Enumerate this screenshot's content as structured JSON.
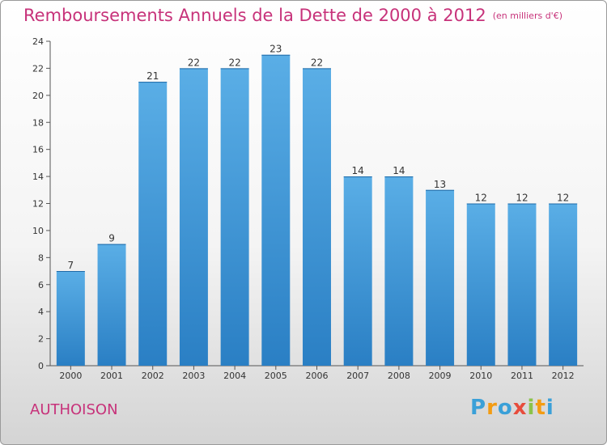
{
  "title": "Remboursements Annuels de la Dette de 2000 à 2012",
  "unit": "(en milliers d'€)",
  "commune": "AUTHOISON",
  "logo": "Proxiti",
  "chart_data": {
    "type": "bar",
    "title": "Remboursements Annuels de la Dette de 2000 à 2012",
    "subtitle": "(en milliers d'€)",
    "categories": [
      "2000",
      "2001",
      "2002",
      "2003",
      "2004",
      "2005",
      "2006",
      "2007",
      "2008",
      "2009",
      "2010",
      "2011",
      "2012"
    ],
    "values": [
      7,
      9,
      21,
      22,
      22,
      23,
      22,
      14,
      14,
      13,
      12,
      12,
      12
    ],
    "ylim": [
      0,
      24
    ],
    "yticks": [
      0,
      2,
      4,
      6,
      8,
      10,
      12,
      14,
      16,
      18,
      20,
      22,
      24
    ],
    "grid": false,
    "bar_color": "#3a92d6"
  }
}
